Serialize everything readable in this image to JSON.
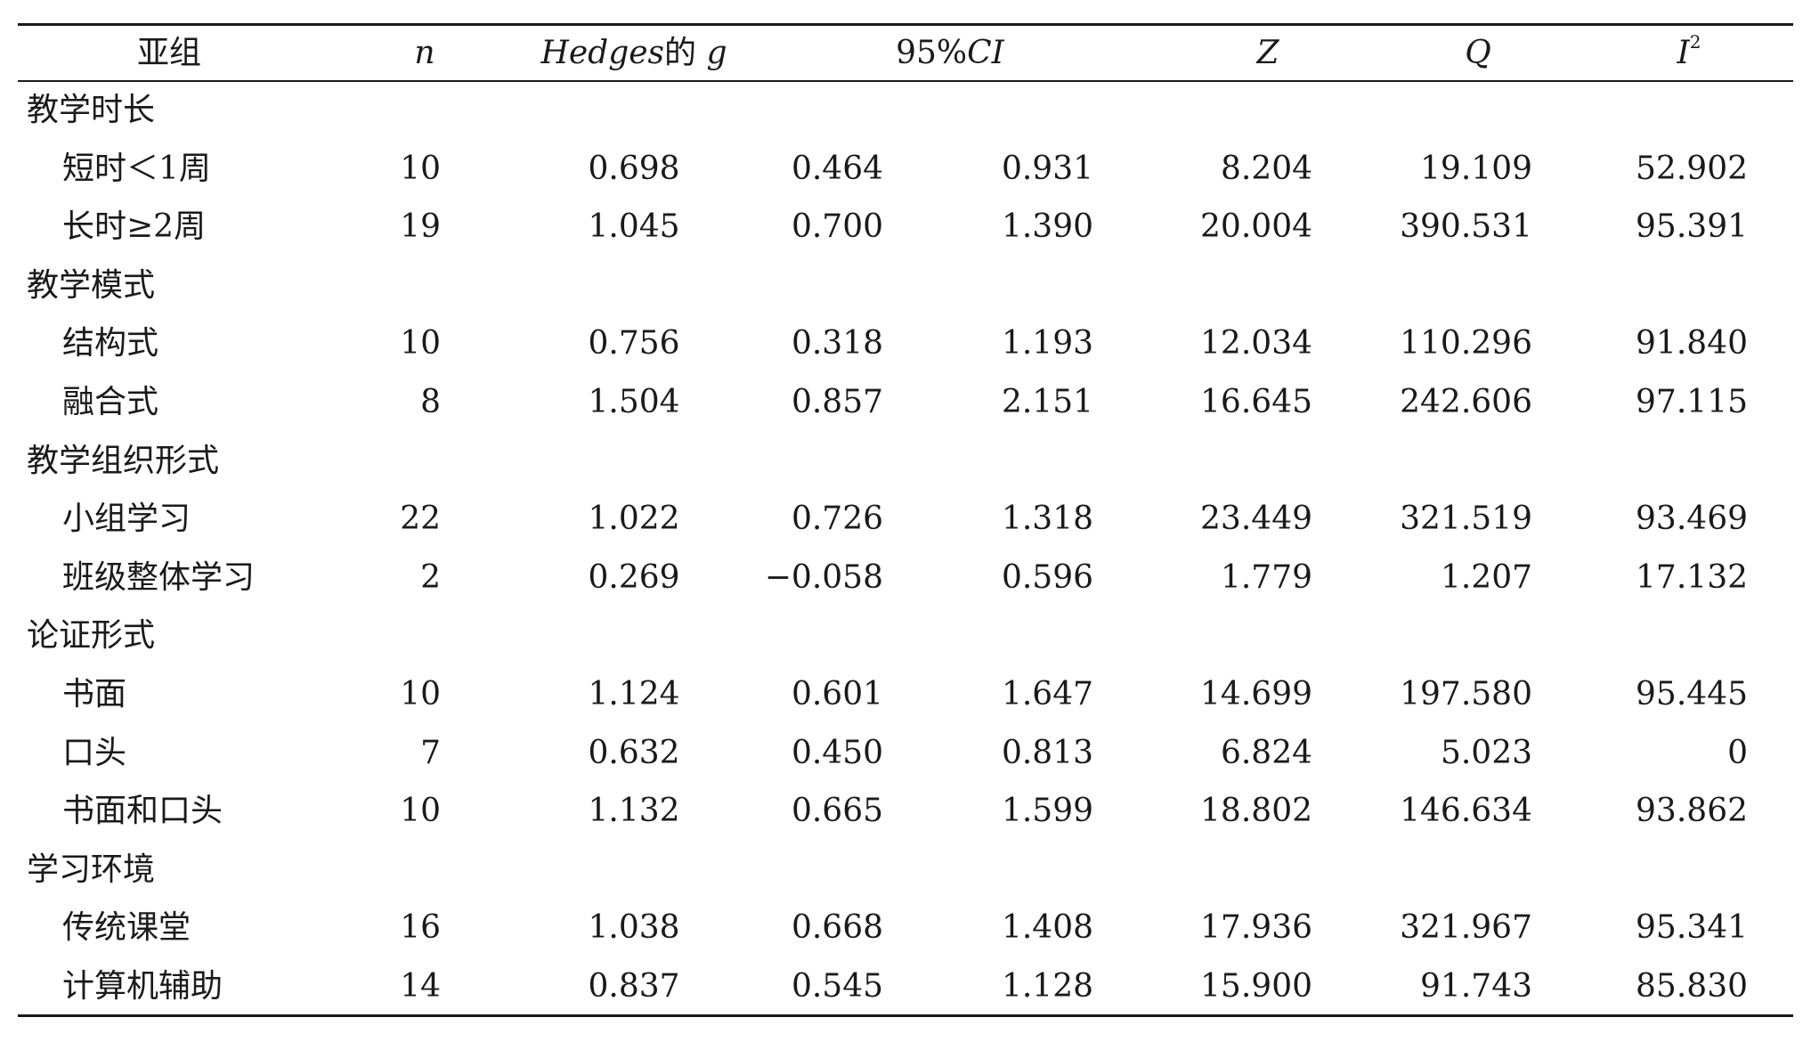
{
  "table": {
    "headers": {
      "subgroup": "亚组",
      "n": "n",
      "hedges_italic": "Hedges",
      "hedges_suffix": "的 ",
      "hedges_g": "g",
      "ci_prefix": "95%",
      "ci_italic": "CI",
      "z": "Z",
      "q": "Q",
      "i2_base": "I",
      "i2_sup": "2"
    },
    "groups": [
      {
        "label": "教学时长",
        "rows": [
          {
            "name": "短时＜1周",
            "n": "10",
            "g": "0.698",
            "ci_low": "0.464",
            "ci_high": "0.931",
            "z": "8.204",
            "q": "19.109",
            "i2": "52.902"
          },
          {
            "name": "长时≥2周",
            "n": "19",
            "g": "1.045",
            "ci_low": "0.700",
            "ci_high": "1.390",
            "z": "20.004",
            "q": "390.531",
            "i2": "95.391"
          }
        ]
      },
      {
        "label": "教学模式",
        "rows": [
          {
            "name": "结构式",
            "n": "10",
            "g": "0.756",
            "ci_low": "0.318",
            "ci_high": "1.193",
            "z": "12.034",
            "q": "110.296",
            "i2": "91.840"
          },
          {
            "name": "融合式",
            "n": "8",
            "g": "1.504",
            "ci_low": "0.857",
            "ci_high": "2.151",
            "z": "16.645",
            "q": "242.606",
            "i2": "97.115"
          }
        ]
      },
      {
        "label": "教学组织形式",
        "rows": [
          {
            "name": "小组学习",
            "n": "22",
            "g": "1.022",
            "ci_low": "0.726",
            "ci_high": "1.318",
            "z": "23.449",
            "q": "321.519",
            "i2": "93.469"
          },
          {
            "name": "班级整体学习",
            "n": "2",
            "g": "0.269",
            "ci_low": "−0.058",
            "ci_high": "0.596",
            "z": "1.779",
            "q": "1.207",
            "i2": "17.132"
          }
        ]
      },
      {
        "label": "论证形式",
        "rows": [
          {
            "name": "书面",
            "n": "10",
            "g": "1.124",
            "ci_low": "0.601",
            "ci_high": "1.647",
            "z": "14.699",
            "q": "197.580",
            "i2": "95.445"
          },
          {
            "name": "口头",
            "n": "7",
            "g": "0.632",
            "ci_low": "0.450",
            "ci_high": "0.813",
            "z": "6.824",
            "q": "5.023",
            "i2": "0"
          },
          {
            "name": "书面和口头",
            "n": "10",
            "g": "1.132",
            "ci_low": "0.665",
            "ci_high": "1.599",
            "z": "18.802",
            "q": "146.634",
            "i2": "93.862"
          }
        ]
      },
      {
        "label": "学习环境",
        "rows": [
          {
            "name": "传统课堂",
            "n": "16",
            "g": "1.038",
            "ci_low": "0.668",
            "ci_high": "1.408",
            "z": "17.936",
            "q": "321.967",
            "i2": "95.341"
          },
          {
            "name": "计算机辅助",
            "n": "14",
            "g": "0.837",
            "ci_low": "0.545",
            "ci_high": "1.128",
            "z": "15.900",
            "q": "91.743",
            "i2": "85.830"
          }
        ]
      }
    ]
  }
}
